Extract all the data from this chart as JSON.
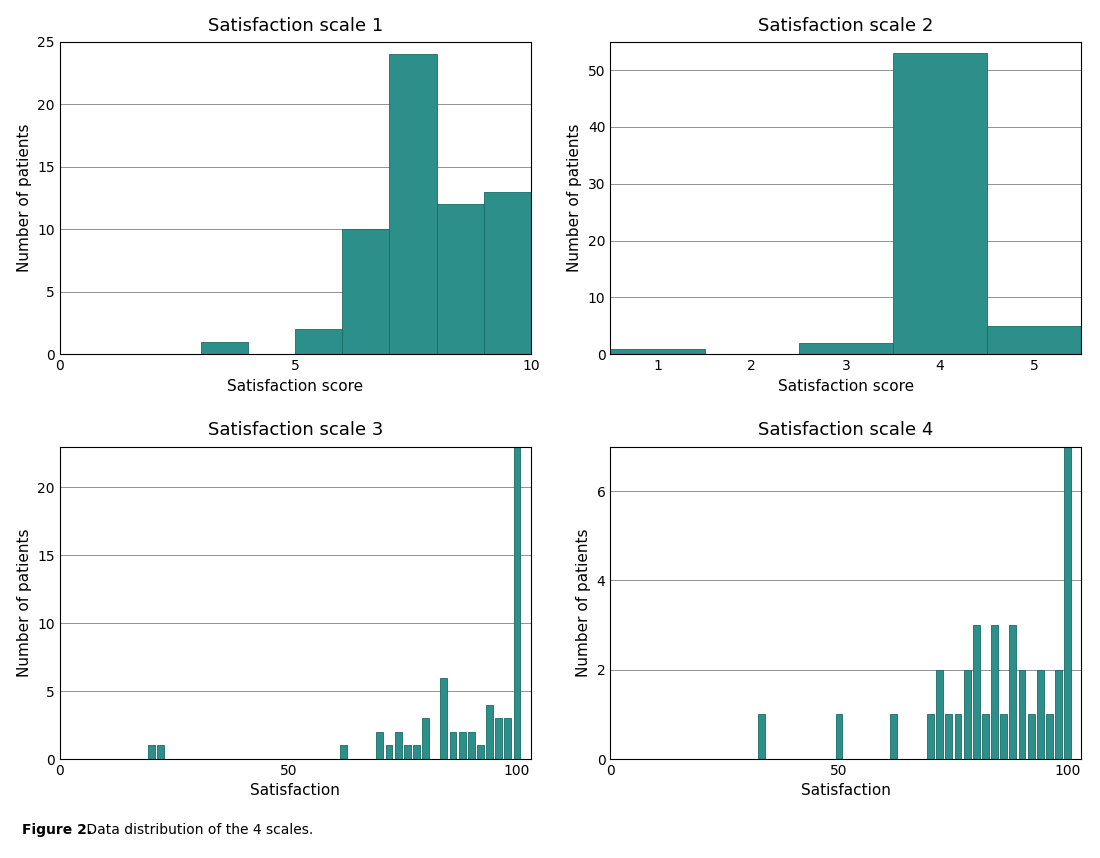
{
  "teal_color": "#2d8f8a",
  "bar_edgecolor": "#1a6a65",
  "background_color": "#ffffff",
  "title_fontsize": 13,
  "label_fontsize": 11,
  "tick_fontsize": 10,
  "figure_caption_bold": "Figure 2.",
  "figure_caption_rest": " Data distribution of the 4 scales.",
  "scale1": {
    "title": "Satisfaction scale 1",
    "xlabel": "Satisfaction score",
    "ylabel": "Number of patients",
    "xlim": [
      0,
      10
    ],
    "ylim": [
      0,
      25
    ],
    "yticks": [
      0,
      5,
      10,
      15,
      20,
      25
    ],
    "xticks": [
      0,
      5,
      10
    ],
    "bar_lefts": [
      3,
      5,
      6,
      7,
      8,
      9
    ],
    "bar_heights": [
      1,
      2,
      10,
      24,
      12,
      13
    ],
    "bar_width": 1.0
  },
  "scale2": {
    "title": "Satisfaction scale 2",
    "xlabel": "Satisfaction score",
    "ylabel": "Number of patients",
    "xlim": [
      0.5,
      5.5
    ],
    "ylim": [
      0,
      55
    ],
    "yticks": [
      0,
      10,
      20,
      30,
      40,
      50
    ],
    "xticks": [
      1,
      2,
      3,
      4,
      5
    ],
    "bar_centers": [
      1,
      2,
      3,
      4,
      5
    ],
    "bar_heights": [
      1,
      0,
      2,
      53,
      5
    ],
    "bar_width": 1.0
  },
  "scale3": {
    "title": "Satisfaction scale 3",
    "xlabel": "Satisfaction",
    "ylabel": "Number of patients",
    "xlim": [
      0,
      103
    ],
    "ylim": [
      0,
      23
    ],
    "yticks": [
      0,
      5,
      10,
      15,
      20
    ],
    "xticks": [
      0,
      50,
      100
    ],
    "bar_centers": [
      20,
      22,
      62,
      70,
      72,
      74,
      76,
      78,
      80,
      84,
      86,
      88,
      90,
      92,
      94,
      96,
      98,
      100
    ],
    "bar_heights": [
      1,
      1,
      1,
      2,
      1,
      2,
      1,
      1,
      3,
      6,
      2,
      2,
      2,
      1,
      4,
      3,
      3,
      23
    ],
    "bar_width": 1.5
  },
  "scale4": {
    "title": "Satisfaction scale 4",
    "xlabel": "Satisfaction",
    "ylabel": "Number of patients",
    "xlim": [
      0,
      103
    ],
    "ylim": [
      0,
      7
    ],
    "yticks": [
      0,
      2,
      4,
      6
    ],
    "xticks": [
      0,
      50,
      100
    ],
    "bar_centers": [
      33,
      50,
      62,
      70,
      72,
      74,
      76,
      78,
      80,
      82,
      84,
      86,
      88,
      90,
      92,
      94,
      96,
      98,
      100
    ],
    "bar_heights": [
      1,
      1,
      1,
      1,
      2,
      1,
      1,
      2,
      3,
      1,
      3,
      1,
      3,
      2,
      1,
      2,
      1,
      2,
      7
    ],
    "bar_width": 1.5
  }
}
